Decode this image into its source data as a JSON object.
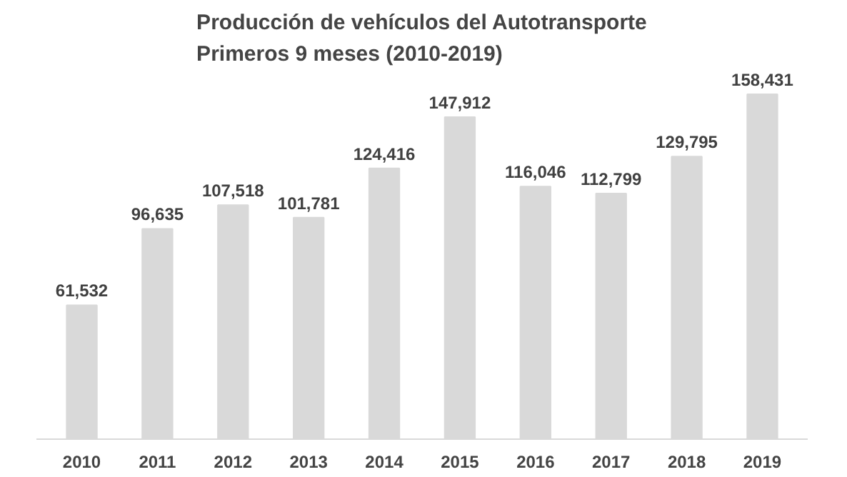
{
  "chart_data": {
    "type": "bar",
    "title": "Producción de vehículos del Autotransporte\nPrimeros 9 meses (2010-2019)",
    "categories": [
      "2010",
      "2011",
      "2012",
      "2013",
      "2014",
      "2015",
      "2016",
      "2017",
      "2018",
      "2019"
    ],
    "values": [
      61532,
      96635,
      107518,
      101781,
      124416,
      147912,
      116046,
      112799,
      129795,
      158431
    ],
    "value_labels": [
      "61,532",
      "96,635",
      "107,518",
      "101,781",
      "124,416",
      "147,912",
      "116,046",
      "112,799",
      "129,795",
      "158,431"
    ],
    "color": "#d9d9d9",
    "tick_labels": "x"
  }
}
